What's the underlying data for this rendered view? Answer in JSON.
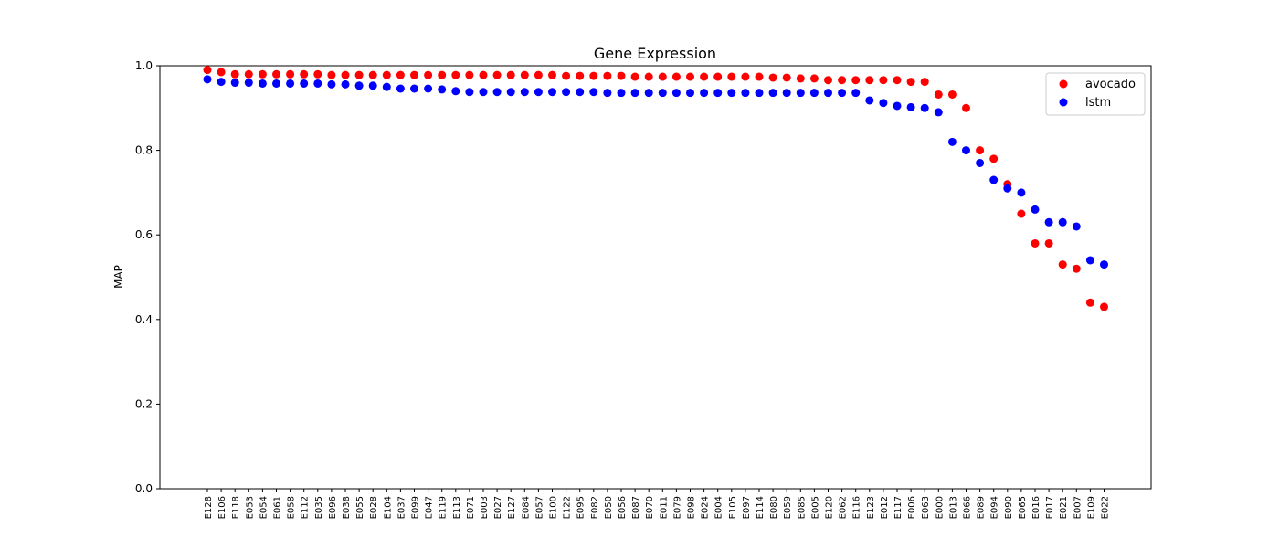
{
  "chart_data": {
    "type": "scatter",
    "title": "Gene Expression",
    "xlabel": "",
    "ylabel": "MAP",
    "ylim": [
      0.0,
      1.0
    ],
    "yticks": [
      "0.0",
      "0.2",
      "0.4",
      "0.6",
      "0.8",
      "1.0"
    ],
    "grid": false,
    "legend_position": "top-right",
    "categories": [
      "E128",
      "E106",
      "E118",
      "E053",
      "E054",
      "E061",
      "E058",
      "E112",
      "E035",
      "E096",
      "E038",
      "E055",
      "E028",
      "E104",
      "E037",
      "E099",
      "E047",
      "E119",
      "E113",
      "E071",
      "E003",
      "E027",
      "E127",
      "E084",
      "E057",
      "E100",
      "E122",
      "E095",
      "E082",
      "E050",
      "E056",
      "E087",
      "E070",
      "E011",
      "E079",
      "E098",
      "E024",
      "E004",
      "E105",
      "E097",
      "E114",
      "E080",
      "E059",
      "E085",
      "E005",
      "E120",
      "E062",
      "E116",
      "E123",
      "E012",
      "E117",
      "E006",
      "E063",
      "E000",
      "E013",
      "E066",
      "E089",
      "E094",
      "E090",
      "E065",
      "E016",
      "E017",
      "E021",
      "E007",
      "E109",
      "E022"
    ],
    "series": [
      {
        "name": "avocado",
        "color": "#ff0000",
        "values": [
          0.99,
          0.985,
          0.98,
          0.98,
          0.98,
          0.98,
          0.98,
          0.98,
          0.98,
          0.978,
          0.978,
          0.978,
          0.978,
          0.978,
          0.978,
          0.978,
          0.978,
          0.978,
          0.978,
          0.978,
          0.978,
          0.978,
          0.978,
          0.978,
          0.978,
          0.978,
          0.976,
          0.976,
          0.976,
          0.976,
          0.976,
          0.974,
          0.974,
          0.974,
          0.974,
          0.974,
          0.974,
          0.974,
          0.974,
          0.974,
          0.974,
          0.972,
          0.972,
          0.97,
          0.97,
          0.966,
          0.966,
          0.966,
          0.966,
          0.966,
          0.966,
          0.962,
          0.962,
          0.932,
          0.932,
          0.9,
          0.8,
          0.78,
          0.72,
          0.65,
          0.58,
          0.58,
          0.53,
          0.52,
          0.44,
          0.43
        ]
      },
      {
        "name": "lstm",
        "color": "#0000ff",
        "values": [
          0.968,
          0.962,
          0.96,
          0.96,
          0.958,
          0.958,
          0.958,
          0.958,
          0.958,
          0.956,
          0.956,
          0.953,
          0.953,
          0.95,
          0.946,
          0.946,
          0.946,
          0.944,
          0.94,
          0.938,
          0.938,
          0.938,
          0.938,
          0.938,
          0.938,
          0.938,
          0.938,
          0.938,
          0.938,
          0.936,
          0.936,
          0.936,
          0.936,
          0.936,
          0.936,
          0.936,
          0.936,
          0.936,
          0.936,
          0.936,
          0.936,
          0.936,
          0.936,
          0.936,
          0.936,
          0.936,
          0.936,
          0.936,
          0.918,
          0.912,
          0.905,
          0.902,
          0.9,
          0.89,
          0.82,
          0.8,
          0.77,
          0.73,
          0.71,
          0.7,
          0.66,
          0.63,
          0.63,
          0.62,
          0.54,
          0.53
        ]
      }
    ]
  }
}
